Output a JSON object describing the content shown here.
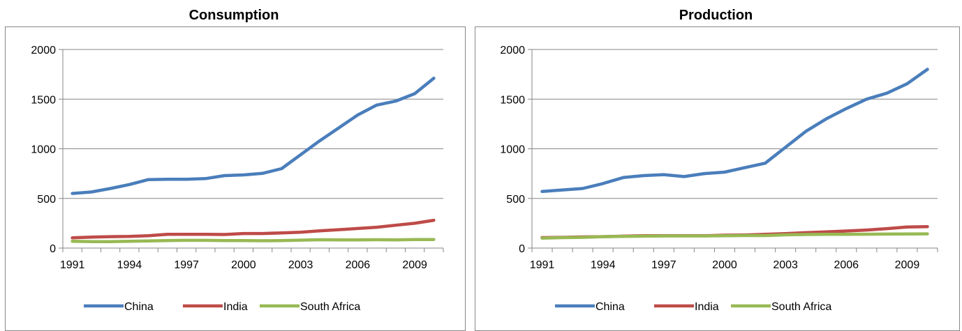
{
  "chart_data": [
    {
      "type": "line",
      "title": "Consumption",
      "x": [
        1991,
        1992,
        1993,
        1994,
        1995,
        1996,
        1997,
        1998,
        1999,
        2000,
        2001,
        2002,
        2003,
        2004,
        2005,
        2006,
        2007,
        2008,
        2009,
        2010
      ],
      "x_tick_labels": [
        "1991",
        "1994",
        "1997",
        "2000",
        "2003",
        "2006",
        "2009"
      ],
      "ylim": [
        0,
        2000
      ],
      "y_tick_labels": [
        "0",
        "500",
        "1000",
        "1500",
        "2000"
      ],
      "grid": true,
      "legend": "bottom",
      "series": [
        {
          "name": "China",
          "color": "#4a7ebb",
          "values": [
            550,
            565,
            600,
            640,
            690,
            693,
            693,
            700,
            730,
            737,
            752,
            800,
            940,
            1080,
            1210,
            1340,
            1440,
            1480,
            1555,
            1710
          ]
        },
        {
          "name": "India",
          "color": "#be4b48",
          "values": [
            103,
            110,
            115,
            118,
            125,
            138,
            138,
            138,
            137,
            147,
            147,
            153,
            160,
            173,
            185,
            197,
            210,
            230,
            250,
            280
          ]
        },
        {
          "name": "South Africa",
          "color": "#98b954",
          "values": [
            68,
            65,
            65,
            68,
            72,
            76,
            78,
            78,
            76,
            76,
            74,
            76,
            80,
            84,
            82,
            82,
            84,
            82,
            86,
            86
          ]
        }
      ]
    },
    {
      "type": "line",
      "title": "Production",
      "x": [
        1991,
        1992,
        1993,
        1994,
        1995,
        1996,
        1997,
        1998,
        1999,
        2000,
        2001,
        2002,
        2003,
        2004,
        2005,
        2006,
        2007,
        2008,
        2009,
        2010
      ],
      "x_tick_labels": [
        "1991",
        "1994",
        "1997",
        "2000",
        "2003",
        "2006",
        "2009"
      ],
      "ylim": [
        0,
        2000
      ],
      "y_tick_labels": [
        "0",
        "500",
        "1000",
        "1500",
        "2000"
      ],
      "grid": true,
      "legend": "bottom",
      "series": [
        {
          "name": "China",
          "color": "#4a7ebb",
          "values": [
            570,
            585,
            600,
            650,
            710,
            730,
            740,
            720,
            750,
            765,
            810,
            855,
            1015,
            1175,
            1300,
            1405,
            1500,
            1560,
            1655,
            1800
          ]
        },
        {
          "name": "India",
          "color": "#be4b48",
          "values": [
            105,
            108,
            112,
            115,
            120,
            125,
            125,
            124,
            124,
            130,
            132,
            138,
            145,
            155,
            163,
            172,
            182,
            196,
            212,
            216
          ]
        },
        {
          "name": "South Africa",
          "color": "#98b954",
          "values": [
            100,
            105,
            108,
            115,
            118,
            120,
            122,
            122,
            122,
            125,
            126,
            126,
            133,
            137,
            138,
            138,
            140,
            141,
            142,
            143
          ]
        }
      ]
    }
  ]
}
